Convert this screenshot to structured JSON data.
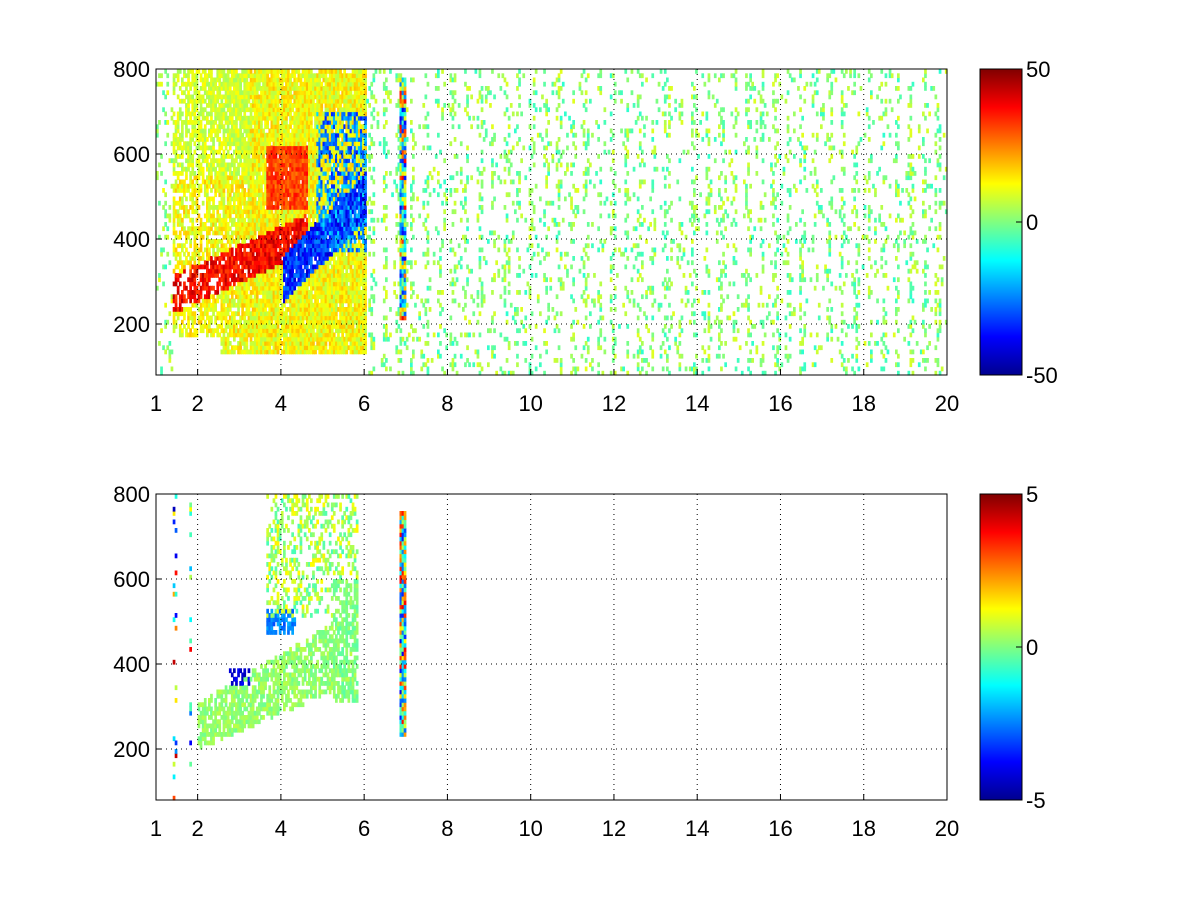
{
  "chart_data": [
    {
      "type": "heatmap",
      "panel": "top",
      "title": "",
      "xlabel": "",
      "ylabel": "",
      "xlim": [
        1,
        20
      ],
      "ylim": [
        80,
        800
      ],
      "x_ticks": [
        1,
        2,
        4,
        6,
        8,
        10,
        12,
        14,
        16,
        18,
        20
      ],
      "y_ticks": [
        200,
        400,
        600,
        800
      ],
      "grid": true,
      "colormap": "jet",
      "clim": [
        -50,
        50
      ],
      "colorbar_ticks": [
        50,
        0,
        -50
      ],
      "description_of_features": [
        {
          "feature": "positive band",
          "x_range": [
            1.5,
            4.5
          ],
          "y_center_at_x1_5": 280,
          "y_center_at_x4_5": 420,
          "value": 40
        },
        {
          "feature": "negative band",
          "x_range": [
            4.0,
            6.0
          ],
          "y_center_at_x4": 330,
          "y_center_at_x6": 520,
          "value": -40
        },
        {
          "feature": "positive upper band",
          "x_range": [
            3.6,
            4.6
          ],
          "y_range": [
            460,
            620
          ],
          "value": 30
        },
        {
          "feature": "yellow broad region",
          "x_range": [
            3.0,
            5.8
          ],
          "y_range": [
            400,
            800
          ],
          "value": 15
        },
        {
          "feature": "vertical stripe",
          "x": 6.9,
          "y_range": [
            200,
            780
          ],
          "values": "mixed -40 to 40"
        },
        {
          "feature": "sparse noise",
          "x_range": [
            6.0,
            20.0
          ],
          "y_range": [
            80,
            800
          ],
          "values": "mostly near 0 (-10 to 10)"
        }
      ]
    },
    {
      "type": "heatmap",
      "panel": "bottom",
      "title": "",
      "xlabel": "",
      "ylabel": "",
      "xlim": [
        1,
        20
      ],
      "ylim": [
        80,
        800
      ],
      "x_ticks": [
        1,
        2,
        4,
        6,
        8,
        10,
        12,
        14,
        16,
        18,
        20
      ],
      "y_ticks": [
        200,
        400,
        600,
        800
      ],
      "grid": true,
      "colormap": "jet",
      "clim": [
        -5,
        5
      ],
      "colorbar_ticks": [
        5,
        0,
        -5
      ],
      "description_of_features": [
        {
          "feature": "near-zero band",
          "x_range": [
            2.0,
            5.8
          ],
          "y_center_at_x2": 260,
          "y_center_at_x5_8": 440,
          "value": 0
        },
        {
          "feature": "negative patch",
          "x_range": [
            3.6,
            4.3
          ],
          "y_range": [
            460,
            520
          ],
          "value": -2
        },
        {
          "feature": "upper sparse region",
          "x_range": [
            3.6,
            5.8
          ],
          "y_range": [
            500,
            800
          ],
          "value": 0.5
        },
        {
          "feature": "vertical stripe",
          "x": 6.9,
          "y_range": [
            220,
            760
          ],
          "values": "mixed -4 to 4"
        },
        {
          "feature": "sparse lines",
          "x": [
            1.4,
            1.8,
            2.0
          ],
          "y_range": [
            100,
            790
          ],
          "values": "mixed"
        }
      ]
    }
  ]
}
